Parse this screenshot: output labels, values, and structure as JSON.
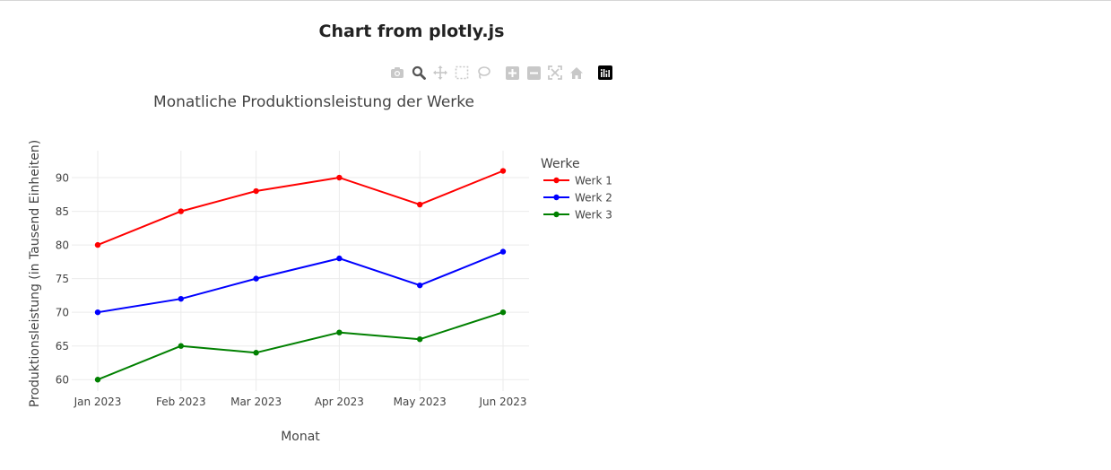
{
  "page": {
    "title": "Chart from plotly.js"
  },
  "toolbar": {
    "buttons": [
      {
        "name": "camera-icon",
        "active": false
      },
      {
        "name": "zoom-icon",
        "active": true
      },
      {
        "name": "pan-icon",
        "active": false
      },
      {
        "name": "box-select-icon",
        "active": false
      },
      {
        "name": "lasso-select-icon",
        "active": false
      },
      {
        "name": "zoom-in-icon",
        "active": false
      },
      {
        "name": "zoom-out-icon",
        "active": false
      },
      {
        "name": "autoscale-icon",
        "active": false
      },
      {
        "name": "reset-axes-icon",
        "active": false
      },
      {
        "name": "plotly-logo-icon",
        "active": false
      }
    ]
  },
  "chart_data": {
    "type": "line",
    "title": "Monatliche Produktionsleistung der Werke",
    "xlabel": "Monat",
    "ylabel": "Produktionsleistung (in Tausend Einheiten)",
    "categories": [
      "Jan 2023",
      "Feb 2023",
      "Mar 2023",
      "Apr 2023",
      "May 2023",
      "Jun 2023"
    ],
    "x": [
      "2023-01-01",
      "2023-02-01",
      "2023-03-01",
      "2023-04-01",
      "2023-05-01",
      "2023-06-01"
    ],
    "ylim": [
      58.3,
      94
    ],
    "yticks": [
      60,
      65,
      70,
      75,
      80,
      85,
      90
    ],
    "grid": true,
    "legend": {
      "title": "Werke",
      "placement": "right"
    },
    "series": [
      {
        "name": "Werk 1",
        "color": "#ff0000",
        "values": [
          80,
          85,
          88,
          90,
          86,
          91
        ]
      },
      {
        "name": "Werk 2",
        "color": "#0000ff",
        "values": [
          70,
          72,
          75,
          78,
          74,
          79
        ]
      },
      {
        "name": "Werk 3",
        "color": "#008000",
        "values": [
          60,
          65,
          64,
          67,
          66,
          70
        ]
      }
    ]
  }
}
